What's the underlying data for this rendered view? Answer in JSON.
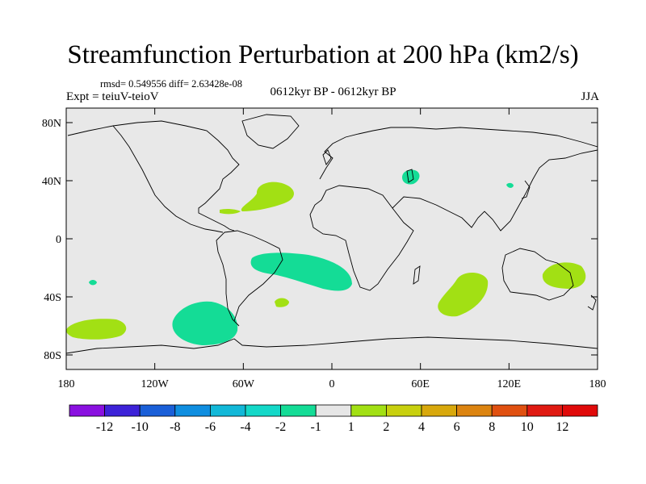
{
  "chart_data": {
    "type": "contour-map",
    "title": "Streamfunction Perturbation at 200 hPa (km2/s)",
    "stats_text": "rmsd= 0.549556 diff= 2.63428e-08",
    "left_label": "Expt = teiuV-teioV",
    "center_label": "0612kyr BP - 0612kyr BP",
    "right_label": "JJA",
    "lon_range": [
      -180,
      180
    ],
    "lat_range": [
      -90,
      90
    ],
    "x_ticks": [
      {
        "value": -180,
        "label": "180"
      },
      {
        "value": -120,
        "label": "120W"
      },
      {
        "value": -60,
        "label": "60W"
      },
      {
        "value": 0,
        "label": "0"
      },
      {
        "value": 60,
        "label": "60E"
      },
      {
        "value": 120,
        "label": "120E"
      },
      {
        "value": 180,
        "label": "180"
      }
    ],
    "y_ticks": [
      {
        "value": 80,
        "label": "80N"
      },
      {
        "value": 40,
        "label": "40N"
      },
      {
        "value": 0,
        "label": "0"
      },
      {
        "value": -40,
        "label": "40S"
      },
      {
        "value": -80,
        "label": "80S"
      }
    ],
    "colorbar": {
      "levels": [
        "-12",
        "-10",
        "-8",
        "-6",
        "-4",
        "-2",
        "-1",
        "1",
        "2",
        "4",
        "6",
        "8",
        "10",
        "12"
      ],
      "colors": [
        "#8a10e0",
        "#3d22d8",
        "#1a5fd8",
        "#0f8ee0",
        "#12b8d8",
        "#14d8c8",
        "#14dc96",
        "#e6e6e6",
        "#a2e014",
        "#c8d00e",
        "#d8a80c",
        "#dc8410",
        "#e05010",
        "#e01a12",
        "#e00a0a"
      ]
    },
    "regions": [
      {
        "name": "N Atlantic positive anomaly",
        "category": "1 to 2",
        "lon_center": -46,
        "lat_center": 29
      },
      {
        "name": "Caribbean positive anomaly",
        "category": "1 to 2",
        "lon_center": -70,
        "lat_center": 19
      },
      {
        "name": "Caspian negative anomaly",
        "category": "-2 to -1",
        "lon_center": 53,
        "lat_center": 42
      },
      {
        "name": "Korea negative anomaly",
        "category": "-2 to -1",
        "lon_center": 122,
        "lat_center": 35
      },
      {
        "name": "S Atlantic negative anomaly",
        "category": "-2 to -1",
        "lon_center": -20,
        "lat_center": -23
      },
      {
        "name": "SE Pacific negative anomaly",
        "category": "-2 to -1",
        "lon_center": -82,
        "lat_center": -62
      },
      {
        "name": "Central Pacific small negative",
        "category": "-2 to -1",
        "lon_center": -163,
        "lat_center": -31
      },
      {
        "name": "South Atlantic small positive",
        "category": "1 to 2",
        "lon_center": -34,
        "lat_center": -43
      },
      {
        "name": "S Indian Ocean positive anomaly",
        "category": "1 to 2",
        "lon_center": 90,
        "lat_center": -43
      },
      {
        "name": "E Australia positive anomaly",
        "category": "1 to 2",
        "lon_center": 153,
        "lat_center": -25
      },
      {
        "name": "S Pacific positive anomaly",
        "category": "1 to 2",
        "lon_center": -163,
        "lat_center": -62
      }
    ]
  }
}
